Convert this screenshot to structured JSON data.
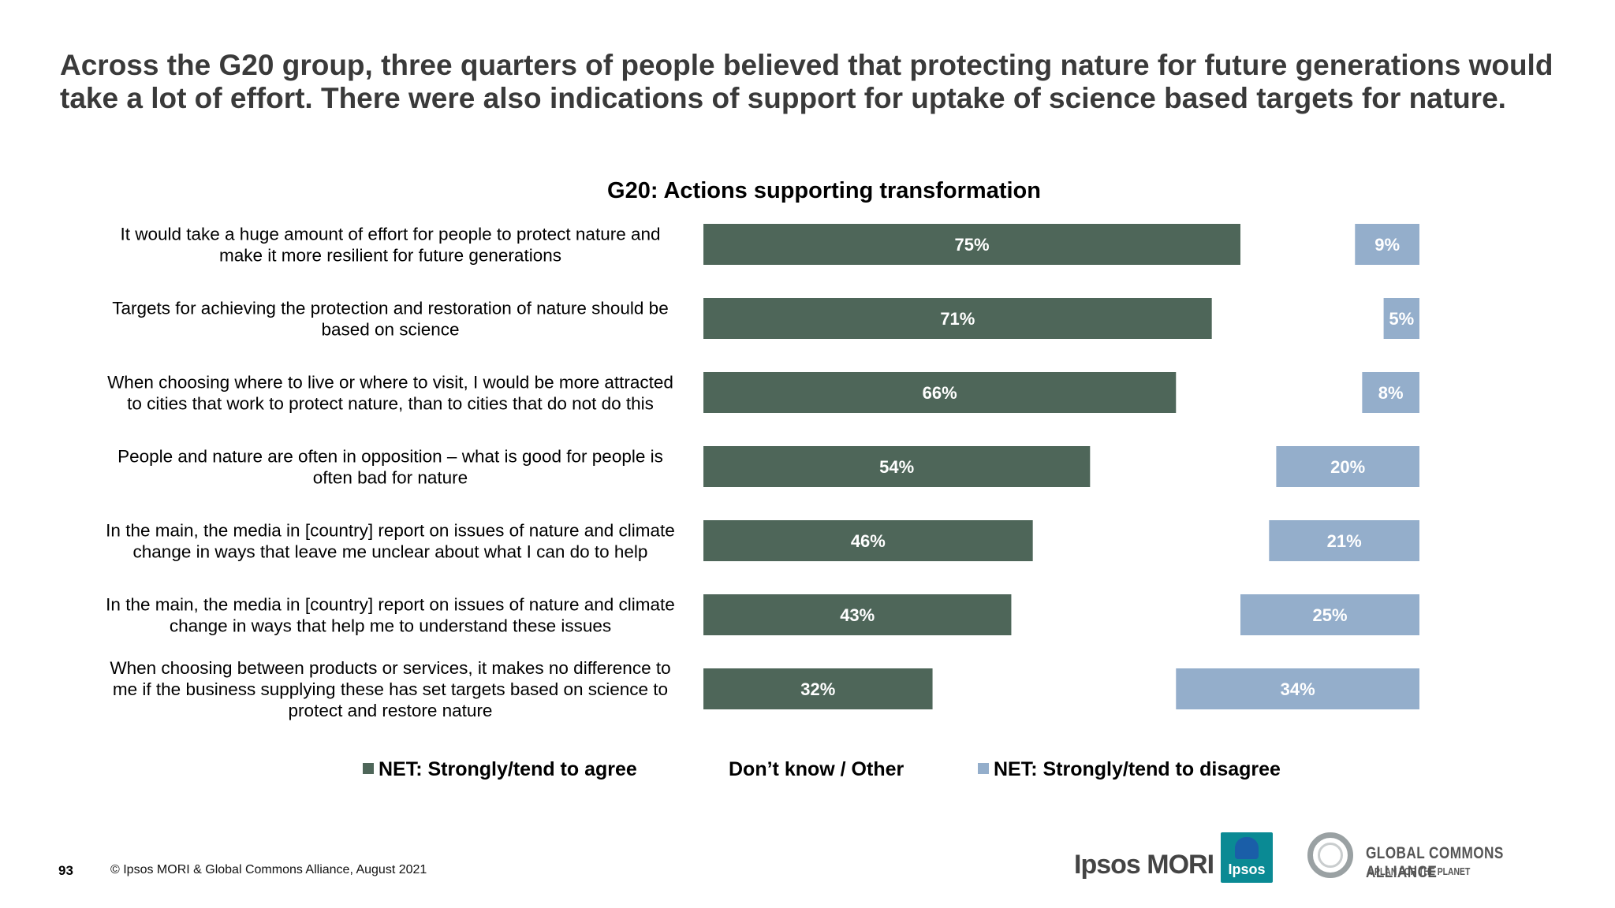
{
  "headline": "Across the G20 group, three quarters of people believed that protecting nature for future generations would take a lot of effort. There were also indications of support for uptake of science based targets for nature.",
  "colors": {
    "agree": "#4e6659",
    "disagree": "#94aecb",
    "bar_label": "#ffffff",
    "headline": "#3a3a3a"
  },
  "chart_data": {
    "type": "bar",
    "orientation": "horizontal",
    "stacking": "stacked-100",
    "title": "G20: Actions supporting transformation",
    "categories": [
      "It would take a huge amount of effort for people to protect nature and make it more resilient for future generations",
      "Targets for achieving the protection and restoration of nature should be based on science",
      "When choosing where to live or where to visit, I would be more attracted to cities that work to protect nature, than to cities that do not do this",
      "People and nature are often in opposition – what is good for people is often bad for nature",
      "In the main, the media in [country] report on issues of nature and climate change in ways that leave me unclear about what I can do to help",
      "In the main, the media in [country] report on issues of nature and climate change in ways that help me to understand these issues",
      "When choosing between products or services, it makes no difference to me if the business supplying these has set targets based on science to protect and restore nature"
    ],
    "category_lines": [
      [
        "It would take a huge amount of effort for people to protect nature and",
        "make it more resilient for future generations"
      ],
      [
        "Targets for achieving the protection and restoration of nature should be",
        "based on science"
      ],
      [
        "When choosing where to live or where to visit, I would be more attracted",
        "to cities that work to protect nature, than to cities that do not do this"
      ],
      [
        "People and nature are often in opposition – what is good for people is",
        "often bad for nature"
      ],
      [
        "In the main, the media in [country] report on issues of nature and climate",
        "change in ways that leave me unclear about what I can do to help"
      ],
      [
        "In the main, the media in [country] report on issues of nature and climate",
        "change in ways that help me to understand these issues"
      ],
      [
        "When choosing between products or services, it makes no difference to",
        "me if the business supplying these has set targets based on science to",
        "protect and restore nature"
      ]
    ],
    "series": [
      {
        "name": "NET: Strongly/tend to agree",
        "values": [
          75,
          71,
          66,
          54,
          46,
          43,
          32
        ],
        "labels": [
          "75%",
          "71%",
          "66%",
          "54%",
          "46%",
          "43%",
          "32%"
        ]
      },
      {
        "name": "Don’t know / Other",
        "values": [
          16,
          24,
          26,
          26,
          33,
          32,
          34
        ]
      },
      {
        "name": "NET: Strongly/tend to disagree",
        "values": [
          9,
          5,
          8,
          20,
          21,
          25,
          34
        ],
        "labels": [
          "9%",
          "5%",
          "8%",
          "20%",
          "21%",
          "25%",
          "34%"
        ]
      }
    ],
    "xlim": [
      0,
      100
    ],
    "legend_position": "bottom"
  },
  "footer": {
    "page_number": "93",
    "copyright": "© Ipsos MORI & Global Commons Alliance, August 2021"
  },
  "logos": {
    "ipsos_mori": "Ipsos MORI",
    "ipsos": "Ipsos",
    "gca_name": "GLOBAL COMMONS ALLIANCE",
    "gca_tagline": "A PLAN FOR THE PLANET"
  }
}
